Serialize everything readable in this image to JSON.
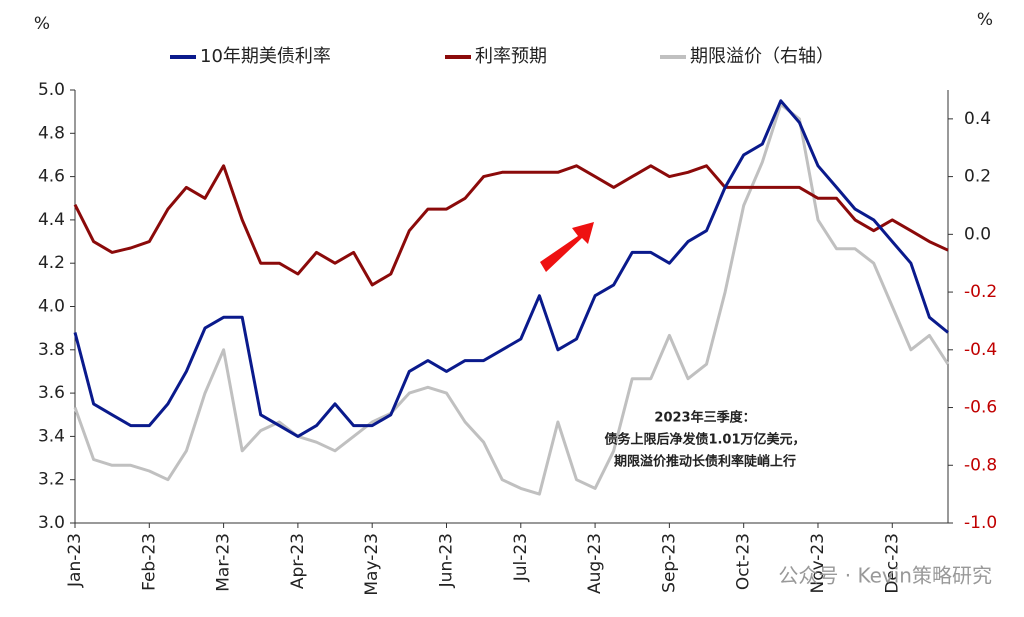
{
  "chart_data": {
    "type": "line",
    "left_unit": "%",
    "right_unit": "%",
    "categories": [
      "Jan-23",
      null,
      null,
      null,
      "Feb-23",
      null,
      null,
      null,
      "Mar-23",
      null,
      null,
      null,
      "Apr-23",
      null,
      null,
      null,
      "May-23",
      null,
      null,
      null,
      "Jun-23",
      null,
      null,
      null,
      "Jul-23",
      null,
      null,
      null,
      "Aug-23",
      null,
      null,
      null,
      "Sep-23",
      null,
      null,
      null,
      "Oct-23",
      null,
      null,
      null,
      "Nov-23",
      null,
      null,
      null,
      "Dec-23",
      null,
      null,
      null
    ],
    "series": [
      {
        "name": "10年期美债利率",
        "color": "#0a1a8c",
        "values": [
          3.88,
          3.55,
          3.5,
          3.45,
          3.45,
          3.55,
          3.7,
          3.9,
          3.95,
          3.95,
          3.5,
          3.45,
          3.4,
          3.45,
          3.55,
          3.45,
          3.45,
          3.5,
          3.7,
          3.75,
          3.7,
          3.75,
          3.75,
          3.8,
          3.85,
          4.05,
          3.8,
          3.85,
          4.05,
          4.1,
          4.25,
          4.25,
          4.2,
          4.3,
          4.35,
          4.55,
          4.7,
          4.75,
          4.95,
          4.85,
          4.65,
          4.55,
          4.45,
          4.4,
          4.3,
          4.2,
          3.95,
          3.88
        ]
      },
      {
        "name": "利率预期",
        "color": "#8b0a0a",
        "values": [
          4.47,
          4.3,
          4.25,
          4.27,
          4.3,
          4.45,
          4.55,
          4.5,
          4.65,
          4.4,
          4.2,
          4.2,
          4.15,
          4.25,
          4.2,
          4.25,
          4.1,
          4.15,
          4.35,
          4.45,
          4.45,
          4.5,
          4.6,
          4.62,
          4.62,
          4.62,
          4.62,
          4.65,
          4.6,
          4.55,
          4.6,
          4.65,
          4.6,
          4.62,
          4.65,
          4.55,
          4.55,
          4.55,
          4.55,
          4.55,
          4.5,
          4.5,
          4.4,
          4.35,
          4.4,
          4.35,
          4.3,
          4.26
        ]
      },
      {
        "name": "期限溢价（右轴）",
        "color": "#c0c0c0",
        "axis": "y2",
        "values": [
          -0.6,
          -0.78,
          -0.8,
          -0.8,
          -0.82,
          -0.85,
          -0.75,
          -0.55,
          -0.4,
          -0.75,
          -0.68,
          -0.65,
          -0.7,
          -0.72,
          -0.75,
          -0.7,
          -0.65,
          -0.62,
          -0.55,
          -0.53,
          -0.55,
          -0.65,
          -0.72,
          -0.85,
          -0.88,
          -0.9,
          -0.65,
          -0.85,
          -0.88,
          -0.75,
          -0.5,
          -0.5,
          -0.35,
          -0.5,
          -0.45,
          -0.2,
          0.1,
          0.25,
          0.45,
          0.4,
          0.05,
          -0.05,
          -0.05,
          -0.1,
          -0.25,
          -0.4,
          -0.35,
          -0.45
        ]
      }
    ],
    "ylim": [
      3.0,
      5.0
    ],
    "yticks": [
      {
        "value": 3.0,
        "label": "3.0"
      },
      3.2,
      3.4,
      3.6,
      3.8,
      {
        "value": 4.0,
        "label": "4.0"
      },
      4.2,
      4.4,
      4.6,
      4.8,
      {
        "value": 5.0,
        "label": "5.0"
      }
    ],
    "y2lim": [
      -1.0,
      0.5
    ],
    "y2ticks": [
      {
        "value": -1.0,
        "label": "-1.0"
      },
      -0.8,
      -0.6,
      -0.4,
      -0.2,
      {
        "value": 0.0,
        "label": "0.0"
      },
      0.2,
      0.4
    ],
    "y2_negative_color": "#c00000",
    "annotation": [
      "2023年三季度：",
      "债务上限后净发债1.01万亿美元，",
      "期限溢价推动长债利率陡峭上行"
    ],
    "watermark": "公众号 · Kevin策略研究"
  }
}
